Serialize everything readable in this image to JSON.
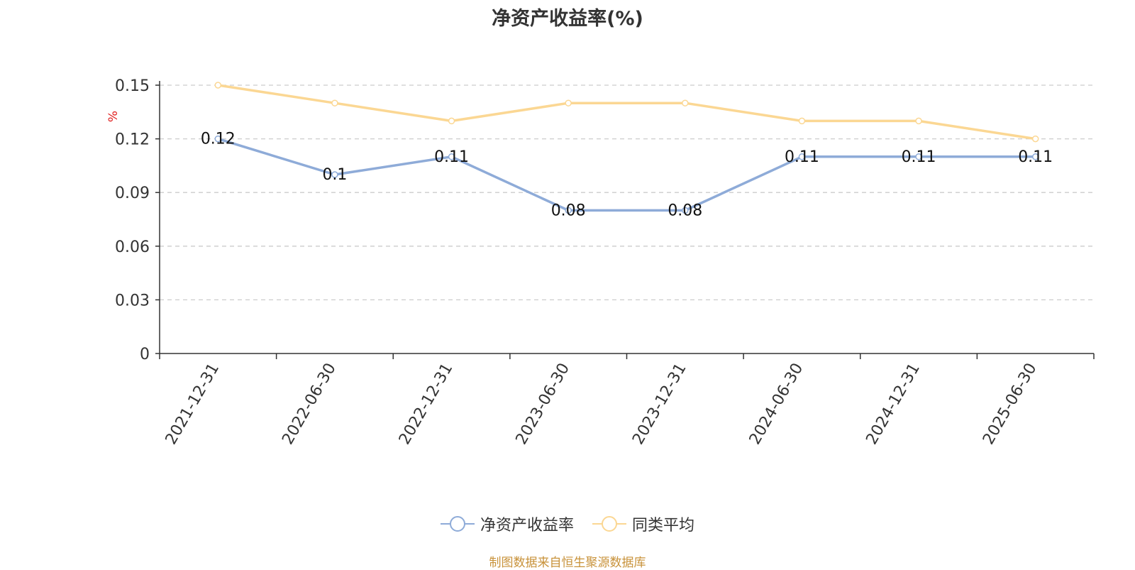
{
  "chart_data": {
    "type": "line",
    "title": "净资产收益率(%)",
    "ylabel": "%",
    "xlabel": "",
    "categories": [
      "2021-12-31",
      "2022-06-30",
      "2022-12-31",
      "2023-06-30",
      "2023-12-31",
      "2024-06-30",
      "2024-12-31",
      "2025-06-30"
    ],
    "ylim": [
      0,
      0.15
    ],
    "yticks": [
      "0",
      "0.03",
      "0.06",
      "0.09",
      "0.12",
      "0.15"
    ],
    "grid": true,
    "legend_position": "bottom-center",
    "series": [
      {
        "name": "净资产收益率",
        "color": "#8eabd8",
        "values": [
          0.12,
          0.1,
          0.11,
          0.08,
          0.08,
          0.11,
          0.11,
          0.11
        ],
        "labels": [
          "0.12",
          "0.1",
          "0.11",
          "0.08",
          "0.08",
          "0.11",
          "0.11",
          "0.11"
        ]
      },
      {
        "name": "同类平均",
        "color": "#fbd793",
        "values": [
          0.15,
          0.14,
          0.13,
          0.14,
          0.14,
          0.13,
          0.13,
          0.12
        ]
      }
    ]
  },
  "source_note": "制图数据来自恒生聚源数据库",
  "axis_unit_color": "#e02020"
}
